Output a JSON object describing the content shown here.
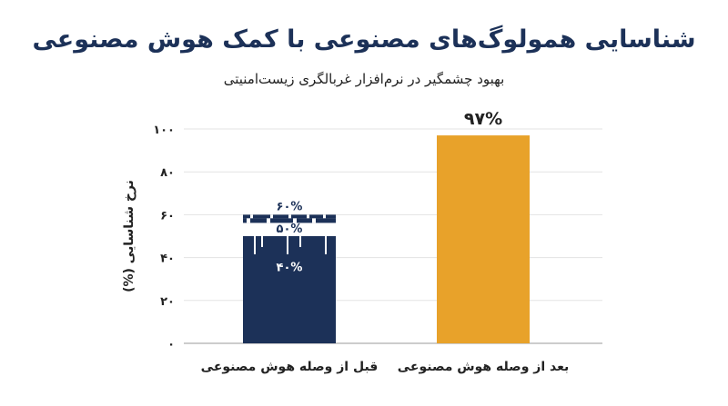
{
  "chart_data": {
    "type": "bar",
    "title": "شناسایی همولوگ‌های مصنوعی با کمک هوش مصنوعی",
    "subtitle": "بهبود چشمگیر در نرم‌افزار غربالگری زیست‌امنیتی",
    "ylabel": "نرخ شناسایی (%)",
    "ylim": [
      0,
      100
    ],
    "yticks": [
      0,
      20,
      40,
      60,
      80,
      100
    ],
    "ytick_labels": [
      "۰",
      "۲۰",
      "۴۰",
      "۶۰",
      "۸۰",
      "۱۰۰"
    ],
    "categories": [
      "قبل از وصله هوش مصنوعی",
      "بعد از وصله هوش مصنوعی"
    ],
    "values": [
      50,
      97
    ],
    "colors": [
      "#1c3158",
      "#e8a22a"
    ],
    "grid": "horizontal",
    "before_range": {
      "low": 40,
      "mid": 50,
      "high": 60,
      "labels": [
        "۶۰%",
        "۵۰%",
        "۴۰%"
      ]
    },
    "after_label": "۹۷%"
  }
}
